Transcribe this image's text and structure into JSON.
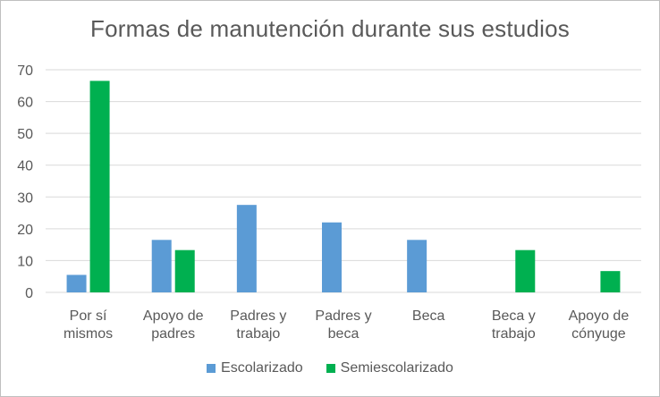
{
  "chart_data": {
    "type": "bar",
    "title": "Formas de manutención durante sus estudios",
    "categories": [
      [
        "Por sí",
        "mismos"
      ],
      [
        "Apoyo de",
        "padres"
      ],
      [
        "Padres y",
        "trabajo"
      ],
      [
        "Padres y",
        "beca"
      ],
      [
        "Beca"
      ],
      [
        "Beca y",
        "trabajo"
      ],
      [
        "Apoyo de",
        "cónyuge"
      ]
    ],
    "series": [
      {
        "name": "Escolarizado",
        "color": "#5b9bd5",
        "values": [
          5.5,
          16.5,
          27.5,
          22,
          16.5,
          0,
          0
        ]
      },
      {
        "name": "Semiescolarizado",
        "color": "#00b050",
        "values": [
          66.5,
          13.3,
          0,
          0,
          0,
          13.3,
          6.7
        ]
      }
    ],
    "yticks": [
      0,
      10,
      20,
      30,
      40,
      50,
      60,
      70
    ],
    "ylim": [
      0,
      70
    ],
    "grid": true,
    "legend_position": "bottom"
  }
}
